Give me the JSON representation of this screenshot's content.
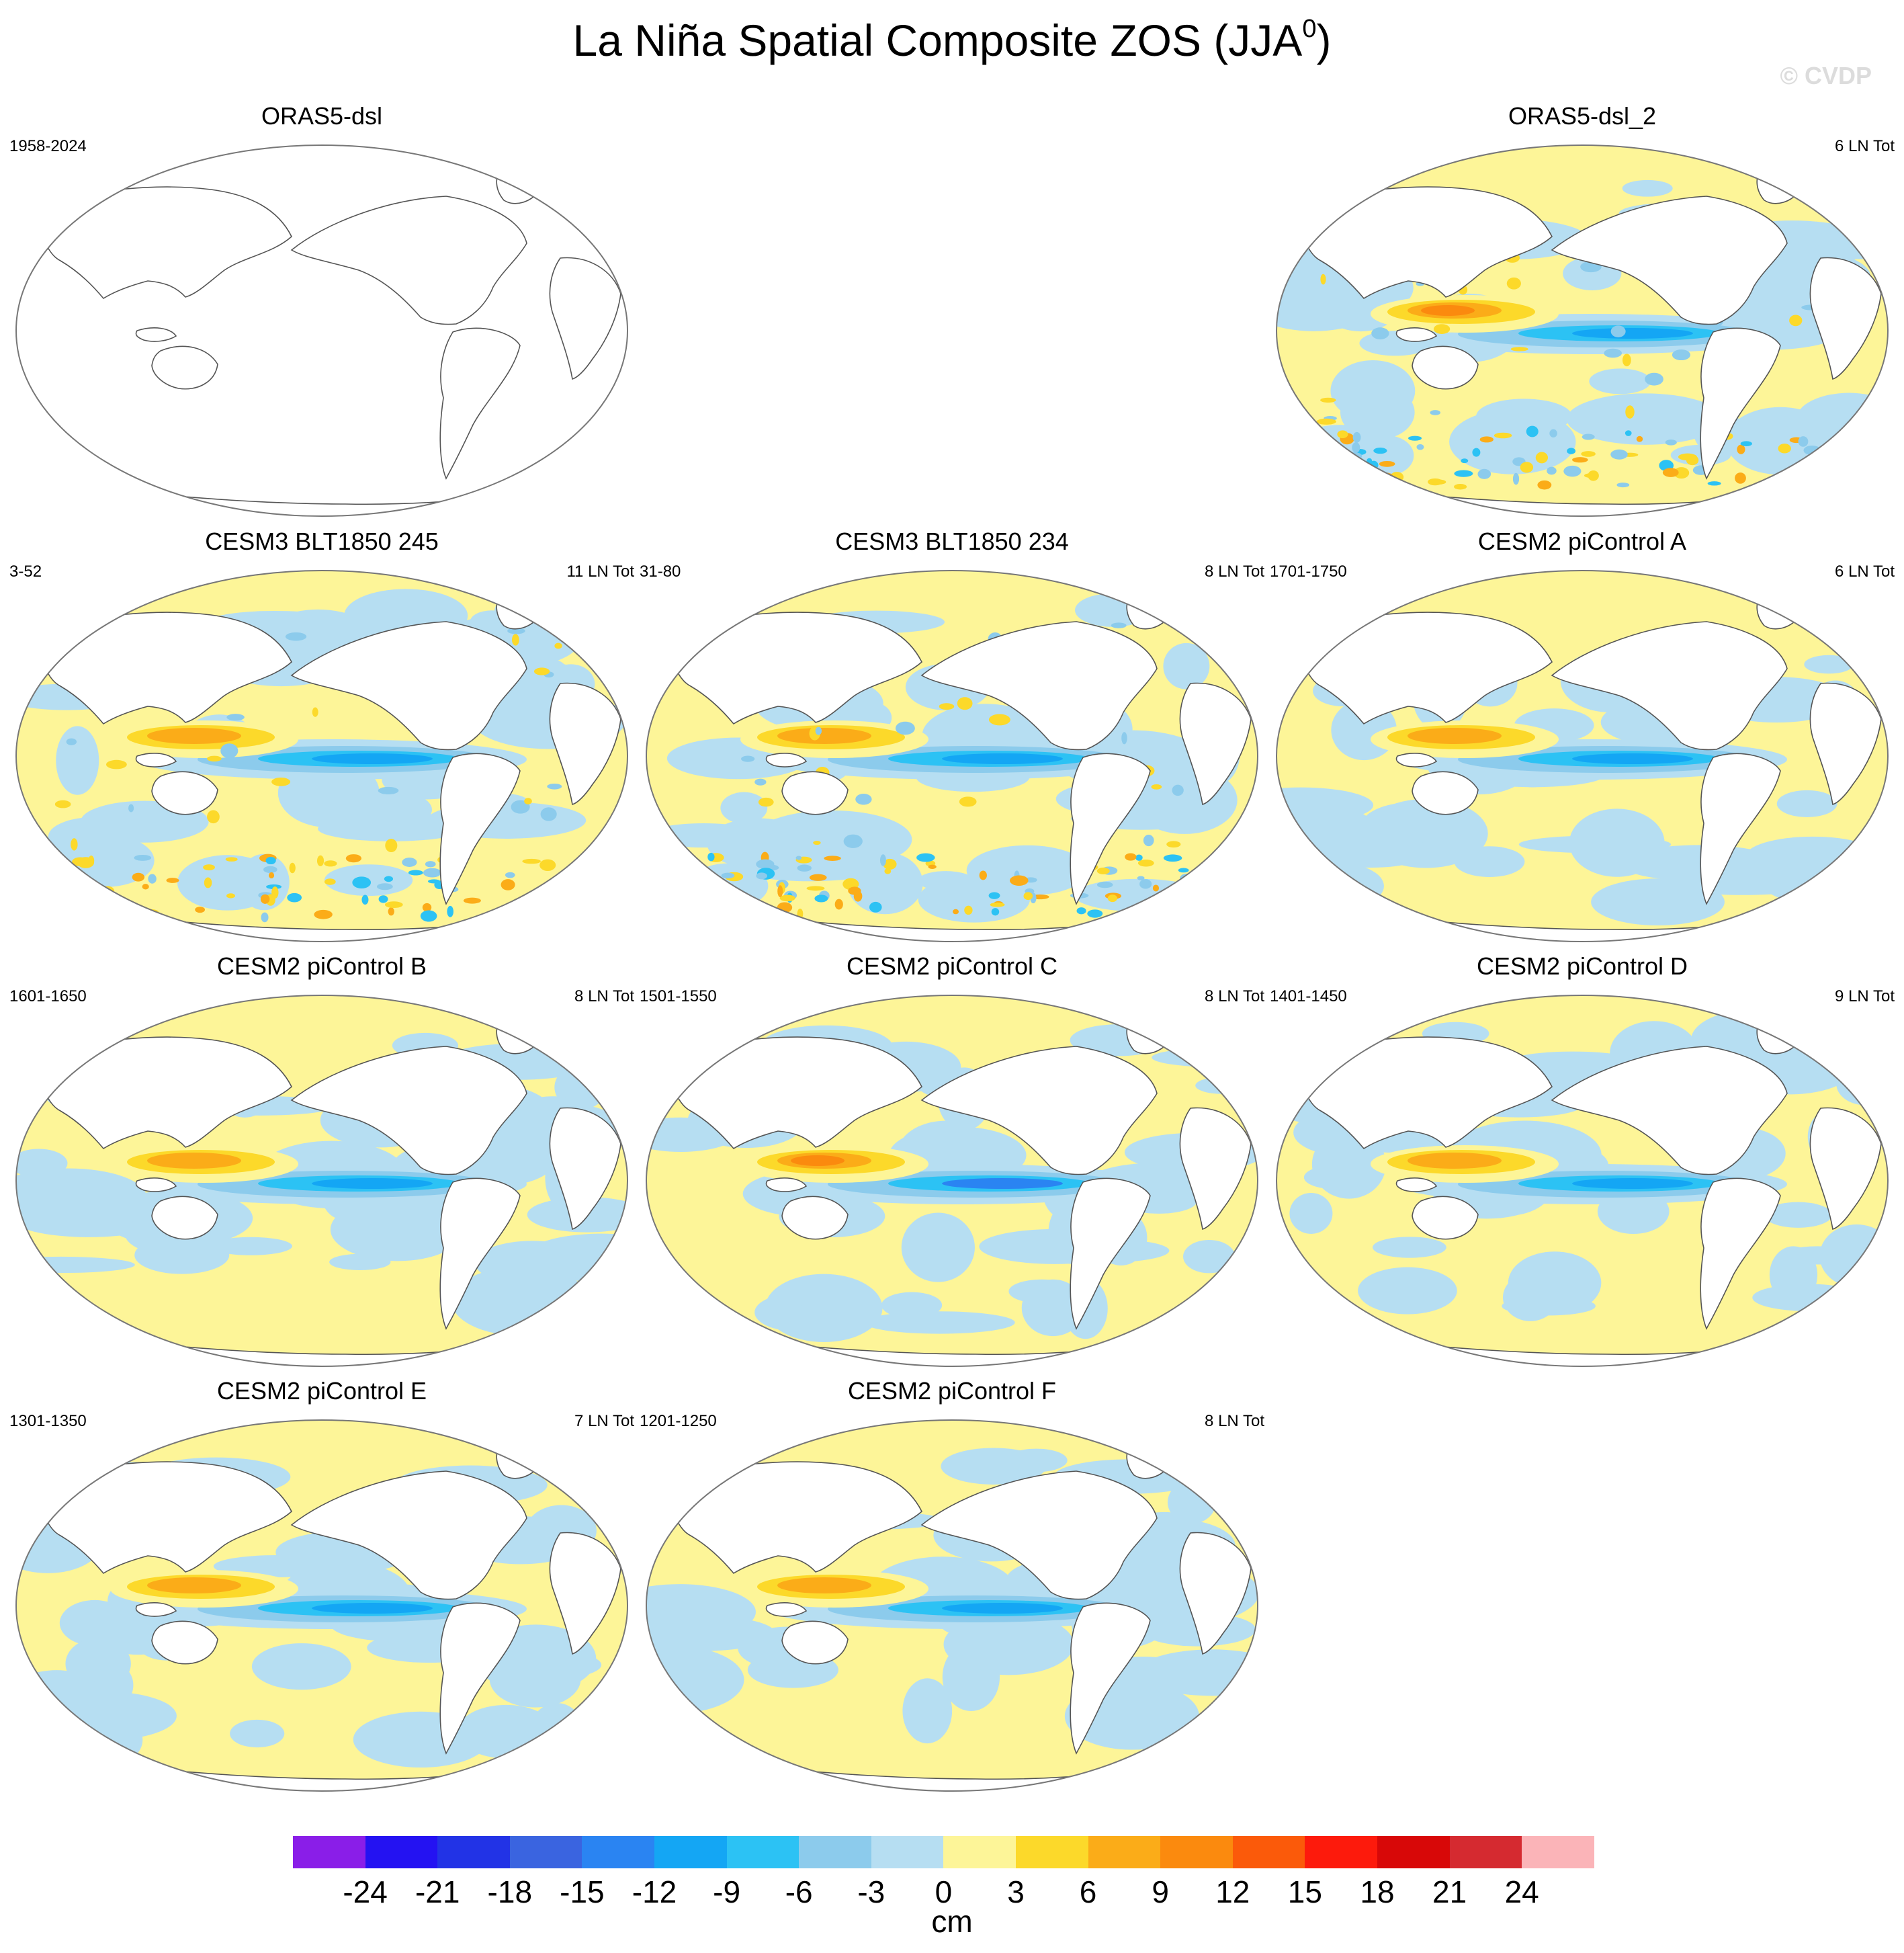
{
  "title": {
    "text": "La Niña Spatial Composite ZOS (JJA",
    "sup": "0",
    "close": ")"
  },
  "watermark": "© CVDP",
  "panels": [
    {
      "title": "ORAS5-dsl",
      "period": "1958-2024",
      "count": "",
      "blank": true
    },
    {
      "title": "ORAS5-dsl_2",
      "period": "",
      "count": "6 LN Tot",
      "pattern": "obs"
    },
    {
      "title": "CESM3 BLT1850 245",
      "period": "3-52",
      "count": "11 LN Tot",
      "pattern": "noisy"
    },
    {
      "title": "CESM3 BLT1850 234",
      "period": "31-80",
      "count": "8 LN Tot",
      "pattern": "noisy"
    },
    {
      "title": "CESM2 piControl A",
      "period": "1701-1750",
      "count": "6 LN Tot",
      "pattern": "smooth"
    },
    {
      "title": "CESM2 piControl B",
      "period": "1601-1650",
      "count": "8 LN Tot",
      "pattern": "smooth"
    },
    {
      "title": "CESM2 piControl C",
      "period": "1501-1550",
      "count": "8 LN Tot",
      "pattern": "strong"
    },
    {
      "title": "CESM2 piControl D",
      "period": "1401-1450",
      "count": "9 LN Tot",
      "pattern": "smooth"
    },
    {
      "title": "CESM2 piControl E",
      "period": "1301-1350",
      "count": "7 LN Tot",
      "pattern": "smooth"
    },
    {
      "title": "CESM2 piControl F",
      "period": "1201-1250",
      "count": "8 LN Tot",
      "pattern": "smooth"
    }
  ],
  "colorbar": {
    "levels": [
      "-24",
      "-21",
      "-18",
      "-15",
      "-12",
      "-9",
      "-6",
      "-3",
      "0",
      "3",
      "6",
      "9",
      "12",
      "15",
      "18",
      "21",
      "24"
    ],
    "colors": [
      "#8a1ee8",
      "#2412f2",
      "#2233e6",
      "#3a64e0",
      "#2a84f2",
      "#14a6f4",
      "#2cc2f4",
      "#8ccbec",
      "#b6def2",
      "#fdf598",
      "#fcd92a",
      "#fbac18",
      "#fb8a0e",
      "#fb5a0a",
      "#fd1a0c",
      "#d80808",
      "#d52a30",
      "#fbb4b8"
    ],
    "unit": "cm"
  }
}
